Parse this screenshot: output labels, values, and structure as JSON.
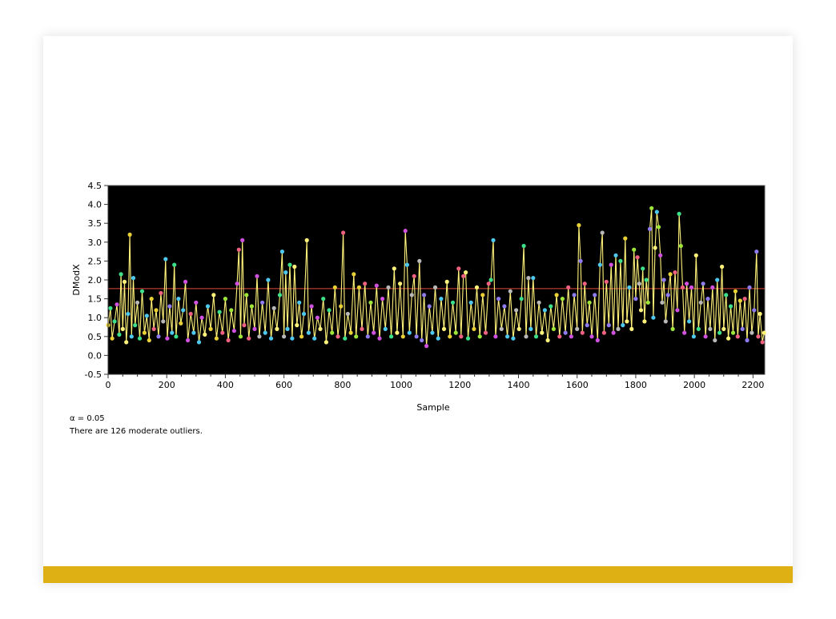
{
  "colors": {
    "accent": "#DFB013",
    "plot_background": "#000000",
    "line": "#FFF27A",
    "threshold": "#E04A3C",
    "marker_palette": [
      "#3DE08A",
      "#FFF27A",
      "#E8D035",
      "#9FE63A",
      "#F06080",
      "#8F7BF0",
      "#D050E0",
      "#B8B8B8",
      "#4FC8F0"
    ]
  },
  "chart_data": {
    "type": "line",
    "title": "",
    "xlabel": "Sample",
    "ylabel": "DModX",
    "xlim": [
      0,
      2240
    ],
    "ylim": [
      -0.5,
      4.5
    ],
    "x_ticks": [
      0,
      200,
      400,
      600,
      800,
      1000,
      1200,
      1400,
      1600,
      1800,
      2000,
      2200
    ],
    "x_tick_labels": [
      "0",
      "200",
      "400",
      "600",
      "800",
      "1000",
      "1200",
      "1400",
      "1600",
      "1800",
      "2000",
      "2200"
    ],
    "y_ticks": [
      -0.5,
      0.0,
      0.5,
      1.0,
      1.5,
      2.0,
      2.5,
      3.0,
      3.5,
      4.0,
      4.5
    ],
    "y_tick_labels": [
      "-0.5",
      "0.0",
      "0.5",
      "1.0",
      "1.5",
      "2.0",
      "2.5",
      "3.0",
      "3.5",
      "4.0",
      "4.5"
    ],
    "grid": false,
    "legend": "none",
    "threshold": 1.77,
    "series": [
      {
        "points": [
          [
            0,
            0.8
          ],
          [
            8,
            1.25
          ],
          [
            14,
            0.45
          ],
          [
            22,
            0.9
          ],
          [
            30,
            1.35
          ],
          [
            38,
            0.55
          ],
          [
            44,
            2.15
          ],
          [
            50,
            0.7
          ],
          [
            56,
            1.95
          ],
          [
            62,
            0.35
          ],
          [
            68,
            1.1
          ],
          [
            74,
            3.2
          ],
          [
            80,
            0.5
          ],
          [
            86,
            2.05
          ],
          [
            92,
            0.8
          ],
          [
            100,
            1.4
          ],
          [
            108,
            0.45
          ],
          [
            116,
            1.7
          ],
          [
            124,
            0.6
          ],
          [
            132,
            1.05
          ],
          [
            140,
            0.4
          ],
          [
            148,
            1.5
          ],
          [
            156,
            0.7
          ],
          [
            164,
            1.2
          ],
          [
            172,
            0.5
          ],
          [
            180,
            1.65
          ],
          [
            188,
            0.9
          ],
          [
            196,
            2.55
          ],
          [
            202,
            0.45
          ],
          [
            210,
            1.3
          ],
          [
            218,
            0.6
          ],
          [
            226,
            2.4
          ],
          [
            232,
            0.5
          ],
          [
            240,
            1.5
          ],
          [
            248,
            0.85
          ],
          [
            256,
            1.2
          ],
          [
            264,
            1.95
          ],
          [
            272,
            0.4
          ],
          [
            282,
            1.1
          ],
          [
            292,
            0.6
          ],
          [
            300,
            1.4
          ],
          [
            310,
            0.35
          ],
          [
            320,
            1.0
          ],
          [
            330,
            0.55
          ],
          [
            340,
            1.3
          ],
          [
            350,
            0.7
          ],
          [
            360,
            1.6
          ],
          [
            370,
            0.45
          ],
          [
            380,
            1.15
          ],
          [
            390,
            0.6
          ],
          [
            400,
            1.5
          ],
          [
            410,
            0.4
          ],
          [
            420,
            1.2
          ],
          [
            430,
            0.65
          ],
          [
            440,
            1.9
          ],
          [
            446,
            2.8
          ],
          [
            452,
            0.5
          ],
          [
            458,
            3.05
          ],
          [
            464,
            0.8
          ],
          [
            472,
            1.6
          ],
          [
            480,
            0.45
          ],
          [
            490,
            1.3
          ],
          [
            500,
            0.7
          ],
          [
            508,
            2.1
          ],
          [
            516,
            0.5
          ],
          [
            526,
            1.4
          ],
          [
            536,
            0.6
          ],
          [
            546,
            2.0
          ],
          [
            556,
            0.45
          ],
          [
            566,
            1.25
          ],
          [
            576,
            0.7
          ],
          [
            586,
            1.6
          ],
          [
            594,
            2.75
          ],
          [
            600,
            0.5
          ],
          [
            606,
            2.2
          ],
          [
            612,
            0.7
          ],
          [
            620,
            2.4
          ],
          [
            628,
            0.45
          ],
          [
            636,
            2.35
          ],
          [
            644,
            0.8
          ],
          [
            652,
            1.4
          ],
          [
            660,
            0.5
          ],
          [
            668,
            1.1
          ],
          [
            678,
            3.05
          ],
          [
            684,
            0.6
          ],
          [
            694,
            1.3
          ],
          [
            704,
            0.45
          ],
          [
            714,
            1.0
          ],
          [
            724,
            0.7
          ],
          [
            734,
            1.5
          ],
          [
            744,
            0.35
          ],
          [
            754,
            1.2
          ],
          [
            764,
            0.6
          ],
          [
            774,
            1.8
          ],
          [
            784,
            0.5
          ],
          [
            794,
            1.3
          ],
          [
            802,
            3.25
          ],
          [
            808,
            0.45
          ],
          [
            818,
            1.1
          ],
          [
            828,
            0.6
          ],
          [
            838,
            2.15
          ],
          [
            846,
            0.5
          ],
          [
            856,
            1.8
          ],
          [
            866,
            0.7
          ],
          [
            876,
            1.9
          ],
          [
            886,
            0.5
          ],
          [
            896,
            1.4
          ],
          [
            906,
            0.6
          ],
          [
            916,
            1.85
          ],
          [
            926,
            0.45
          ],
          [
            936,
            1.5
          ],
          [
            946,
            0.7
          ],
          [
            956,
            1.8
          ],
          [
            966,
            0.5
          ],
          [
            976,
            2.3
          ],
          [
            986,
            0.6
          ],
          [
            996,
            1.9
          ],
          [
            1006,
            0.5
          ],
          [
            1014,
            3.3
          ],
          [
            1020,
            2.4
          ],
          [
            1028,
            0.6
          ],
          [
            1036,
            1.6
          ],
          [
            1044,
            2.1
          ],
          [
            1052,
            0.5
          ],
          [
            1062,
            2.5
          ],
          [
            1070,
            0.4
          ],
          [
            1078,
            1.6
          ],
          [
            1086,
            0.25
          ],
          [
            1096,
            1.3
          ],
          [
            1106,
            0.6
          ],
          [
            1116,
            1.8
          ],
          [
            1126,
            0.45
          ],
          [
            1136,
            1.5
          ],
          [
            1146,
            0.7
          ],
          [
            1156,
            1.95
          ],
          [
            1166,
            0.5
          ],
          [
            1176,
            1.4
          ],
          [
            1186,
            0.6
          ],
          [
            1196,
            2.3
          ],
          [
            1204,
            0.5
          ],
          [
            1212,
            2.1
          ],
          [
            1220,
            2.2
          ],
          [
            1228,
            0.45
          ],
          [
            1238,
            1.4
          ],
          [
            1248,
            0.7
          ],
          [
            1258,
            1.8
          ],
          [
            1268,
            0.5
          ],
          [
            1278,
            1.6
          ],
          [
            1288,
            0.6
          ],
          [
            1298,
            1.9
          ],
          [
            1306,
            2.0
          ],
          [
            1314,
            3.05
          ],
          [
            1322,
            0.5
          ],
          [
            1332,
            1.5
          ],
          [
            1342,
            0.7
          ],
          [
            1352,
            1.3
          ],
          [
            1362,
            0.5
          ],
          [
            1372,
            1.7
          ],
          [
            1382,
            0.45
          ],
          [
            1392,
            1.2
          ],
          [
            1402,
            0.7
          ],
          [
            1410,
            1.5
          ],
          [
            1418,
            2.9
          ],
          [
            1426,
            0.5
          ],
          [
            1434,
            2.05
          ],
          [
            1442,
            0.7
          ],
          [
            1450,
            2.05
          ],
          [
            1460,
            0.5
          ],
          [
            1470,
            1.4
          ],
          [
            1480,
            0.6
          ],
          [
            1490,
            1.2
          ],
          [
            1500,
            0.4
          ],
          [
            1510,
            1.3
          ],
          [
            1520,
            0.7
          ],
          [
            1530,
            1.6
          ],
          [
            1540,
            0.5
          ],
          [
            1550,
            1.5
          ],
          [
            1560,
            0.6
          ],
          [
            1570,
            1.8
          ],
          [
            1580,
            0.5
          ],
          [
            1590,
            1.6
          ],
          [
            1600,
            0.7
          ],
          [
            1606,
            3.45
          ],
          [
            1612,
            2.5
          ],
          [
            1618,
            0.6
          ],
          [
            1626,
            1.9
          ],
          [
            1634,
            0.8
          ],
          [
            1642,
            1.4
          ],
          [
            1650,
            0.5
          ],
          [
            1660,
            1.6
          ],
          [
            1670,
            0.4
          ],
          [
            1678,
            2.4
          ],
          [
            1686,
            3.25
          ],
          [
            1692,
            0.6
          ],
          [
            1700,
            1.95
          ],
          [
            1708,
            0.8
          ],
          [
            1716,
            2.4
          ],
          [
            1724,
            0.6
          ],
          [
            1732,
            2.65
          ],
          [
            1740,
            0.7
          ],
          [
            1748,
            2.5
          ],
          [
            1756,
            0.8
          ],
          [
            1764,
            3.1
          ],
          [
            1770,
            0.9
          ],
          [
            1778,
            1.8
          ],
          [
            1786,
            0.7
          ],
          [
            1794,
            2.8
          ],
          [
            1800,
            1.5
          ],
          [
            1806,
            2.6
          ],
          [
            1812,
            1.9
          ],
          [
            1818,
            1.2
          ],
          [
            1824,
            2.3
          ],
          [
            1830,
            0.9
          ],
          [
            1836,
            2.0
          ],
          [
            1842,
            1.4
          ],
          [
            1848,
            3.35
          ],
          [
            1854,
            3.9
          ],
          [
            1860,
            1.0
          ],
          [
            1866,
            2.85
          ],
          [
            1872,
            3.8
          ],
          [
            1878,
            3.4
          ],
          [
            1884,
            2.65
          ],
          [
            1890,
            1.4
          ],
          [
            1896,
            2.0
          ],
          [
            1902,
            0.9
          ],
          [
            1910,
            1.6
          ],
          [
            1918,
            2.15
          ],
          [
            1926,
            0.7
          ],
          [
            1934,
            2.2
          ],
          [
            1942,
            1.2
          ],
          [
            1948,
            3.75
          ],
          [
            1954,
            2.9
          ],
          [
            1960,
            1.8
          ],
          [
            1966,
            0.6
          ],
          [
            1974,
            1.9
          ],
          [
            1982,
            0.9
          ],
          [
            1990,
            1.8
          ],
          [
            1998,
            0.5
          ],
          [
            2006,
            2.65
          ],
          [
            2014,
            0.7
          ],
          [
            2022,
            1.4
          ],
          [
            2030,
            1.9
          ],
          [
            2038,
            0.5
          ],
          [
            2046,
            1.5
          ],
          [
            2054,
            0.7
          ],
          [
            2062,
            1.8
          ],
          [
            2070,
            0.4
          ],
          [
            2078,
            2.0
          ],
          [
            2086,
            0.6
          ],
          [
            2094,
            2.35
          ],
          [
            2100,
            0.7
          ],
          [
            2108,
            1.6
          ],
          [
            2116,
            0.45
          ],
          [
            2124,
            1.3
          ],
          [
            2132,
            0.6
          ],
          [
            2140,
            1.7
          ],
          [
            2148,
            0.5
          ],
          [
            2156,
            1.45
          ],
          [
            2164,
            0.7
          ],
          [
            2172,
            1.5
          ],
          [
            2180,
            0.4
          ],
          [
            2188,
            1.8
          ],
          [
            2196,
            0.6
          ],
          [
            2204,
            1.2
          ],
          [
            2212,
            2.75
          ],
          [
            2218,
            0.5
          ],
          [
            2224,
            1.1
          ],
          [
            2232,
            0.35
          ],
          [
            2238,
            0.6
          ]
        ]
      }
    ]
  },
  "notes": {
    "alpha": "α = 0.05",
    "outliers": "There are 126 moderate outliers."
  }
}
